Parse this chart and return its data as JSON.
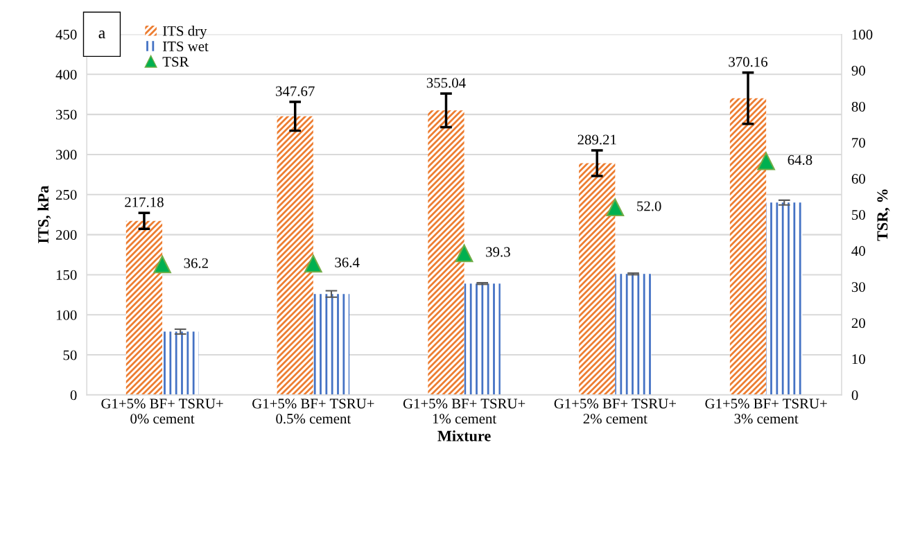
{
  "chart_data": {
    "type": "bar",
    "xlabel": "Mixture",
    "ylabel": "ITS, kPa",
    "y2label": "TSR, %",
    "categories": [
      "G1+5% BF+ TSRU+\n0% cement",
      "G1+5% BF+ TSRU+\n0.5% cement",
      "G1+5% BF+ TSRU+\n1% cement",
      "G1+5% BF+ TSRU+\n2% cement",
      "G1+5% BF+ TSRU+\n3% cement"
    ],
    "series": [
      {
        "name": "ITS dry",
        "color": "#ed7d31",
        "values": [
          217.18,
          347.67,
          355.04,
          289.21,
          370.16
        ],
        "errors": [
          10,
          18,
          21,
          16,
          32
        ],
        "value_labels": [
          "217.18",
          "347.67",
          "355.04",
          "289.21",
          "370.16"
        ]
      },
      {
        "name": "ITS wet",
        "color": "#4472c4",
        "values": [
          79,
          126,
          139,
          151,
          240
        ],
        "errors": [
          3,
          4,
          1,
          1,
          3
        ]
      },
      {
        "name": "TSR",
        "type": "scatter",
        "axis": "y2",
        "color": "#00b050",
        "marker": "triangle",
        "values": [
          36.2,
          36.4,
          39.3,
          52.0,
          64.8
        ],
        "value_labels": [
          "36.2",
          "36.4",
          "39.3",
          "52.0",
          "64.8"
        ]
      }
    ],
    "ylim": [
      0,
      450
    ],
    "yticks": [
      0,
      50,
      100,
      150,
      200,
      250,
      300,
      350,
      400,
      450
    ],
    "y2lim": [
      0,
      100
    ],
    "y2ticks": [
      0,
      10,
      20,
      30,
      40,
      50,
      60,
      70,
      80,
      90,
      100
    ],
    "grid": "y",
    "legend": "top left",
    "annotations": [
      "a"
    ]
  }
}
